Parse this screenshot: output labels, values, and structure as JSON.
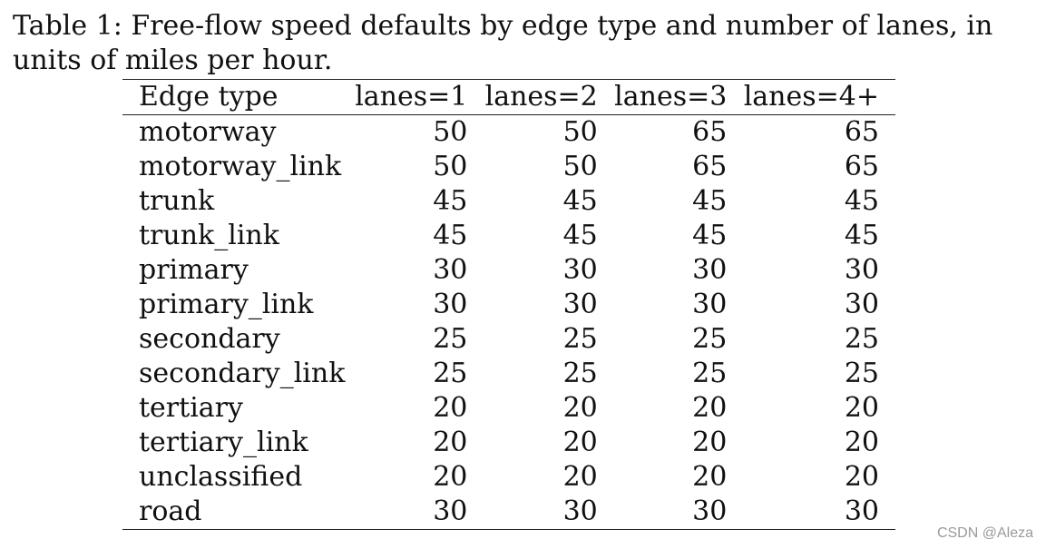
{
  "caption": "Table 1: Free-flow speed defaults by edge type and number of lanes, in units of miles per hour.",
  "table": {
    "headers": [
      "Edge type",
      "lanes=1",
      "lanes=2",
      "lanes=3",
      "lanes=4+"
    ],
    "rows": [
      {
        "type": "motorway",
        "values": [
          "50",
          "50",
          "65",
          "65"
        ]
      },
      {
        "type": "motorway_link",
        "values": [
          "50",
          "50",
          "65",
          "65"
        ]
      },
      {
        "type": "trunk",
        "values": [
          "45",
          "45",
          "45",
          "45"
        ]
      },
      {
        "type": "trunk_link",
        "values": [
          "45",
          "45",
          "45",
          "45"
        ]
      },
      {
        "type": "primary",
        "values": [
          "30",
          "30",
          "30",
          "30"
        ]
      },
      {
        "type": "primary_link",
        "values": [
          "30",
          "30",
          "30",
          "30"
        ]
      },
      {
        "type": "secondary",
        "values": [
          "25",
          "25",
          "25",
          "25"
        ]
      },
      {
        "type": "secondary_link",
        "values": [
          "25",
          "25",
          "25",
          "25"
        ]
      },
      {
        "type": "tertiary",
        "values": [
          "20",
          "20",
          "20",
          "20"
        ]
      },
      {
        "type": "tertiary_link",
        "values": [
          "20",
          "20",
          "20",
          "20"
        ]
      },
      {
        "type": "unclassified",
        "values": [
          "20",
          "20",
          "20",
          "20"
        ]
      },
      {
        "type": "road",
        "values": [
          "30",
          "30",
          "30",
          "30"
        ]
      }
    ]
  },
  "watermark": "CSDN @Aleza"
}
